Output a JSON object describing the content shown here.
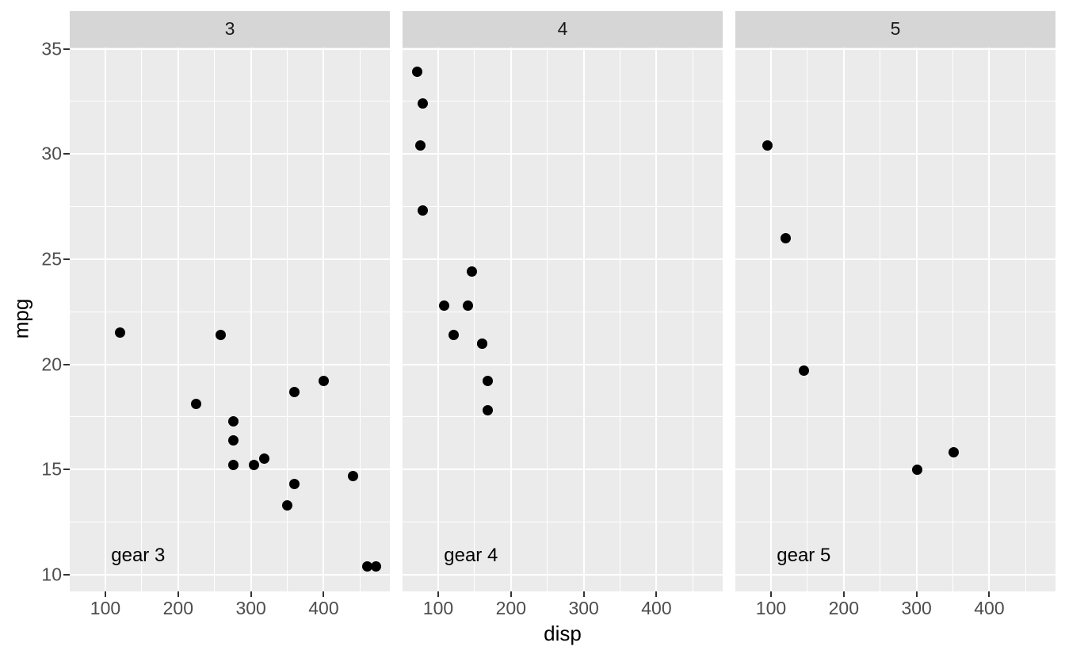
{
  "style": {
    "background": "#FFFFFF",
    "panel_bg": "#EBEBEB",
    "strip_bg": "#D6D6D6",
    "grid_color": "#FFFFFF",
    "point_color": "#000000",
    "axis_text_color": "#4D4D4D",
    "strip_text_color": "#1A1A1A",
    "tick_mark_color": "#333333",
    "axis_title_color": "#000000",
    "annotation_color": "#000000"
  },
  "chart_data": {
    "type": "scatter",
    "title": "",
    "xlabel": "disp",
    "ylabel": "mpg",
    "facet_variable": "gear",
    "grid": true,
    "legend": "none",
    "xlim": [
      51,
      491
    ],
    "ylim": [
      9.22,
      35.08
    ],
    "x_ticks": [
      100,
      200,
      300,
      400
    ],
    "y_ticks": [
      10,
      15,
      20,
      25,
      30,
      35
    ],
    "x_minor_ticks": [
      150,
      250,
      350,
      450
    ],
    "y_minor_ticks": [
      12.5,
      17.5,
      22.5,
      27.5,
      32.5
    ],
    "facets": [
      {
        "strip_label": "3",
        "annotation": {
          "text": "gear 3",
          "x": 145,
          "y": 10.9
        },
        "points": [
          [
            120.1,
            21.5
          ],
          [
            258,
            21.4
          ],
          [
            400,
            19.2
          ],
          [
            360,
            18.7
          ],
          [
            225,
            18.1
          ],
          [
            275.8,
            17.3
          ],
          [
            275.8,
            16.4
          ],
          [
            318,
            15.5
          ],
          [
            275.8,
            15.2
          ],
          [
            304,
            15.2
          ],
          [
            440,
            14.7
          ],
          [
            360,
            14.3
          ],
          [
            350,
            13.3
          ],
          [
            460,
            10.4
          ],
          [
            472,
            10.4
          ]
        ]
      },
      {
        "strip_label": "4",
        "annotation": {
          "text": "gear 4",
          "x": 145,
          "y": 10.9
        },
        "points": [
          [
            71.1,
            33.9
          ],
          [
            78.7,
            32.4
          ],
          [
            75.7,
            30.4
          ],
          [
            79,
            27.3
          ],
          [
            146.7,
            24.4
          ],
          [
            108,
            22.8
          ],
          [
            140.8,
            22.8
          ],
          [
            121,
            21.4
          ],
          [
            160,
            21.0
          ],
          [
            160,
            21.0
          ],
          [
            167.6,
            19.2
          ],
          [
            167.6,
            17.8
          ]
        ]
      },
      {
        "strip_label": "5",
        "annotation": {
          "text": "gear 5",
          "x": 145,
          "y": 10.9
        },
        "points": [
          [
            95.1,
            30.4
          ],
          [
            120.3,
            26.0
          ],
          [
            145,
            19.7
          ],
          [
            351,
            15.8
          ],
          [
            301,
            15.0
          ]
        ]
      }
    ]
  }
}
